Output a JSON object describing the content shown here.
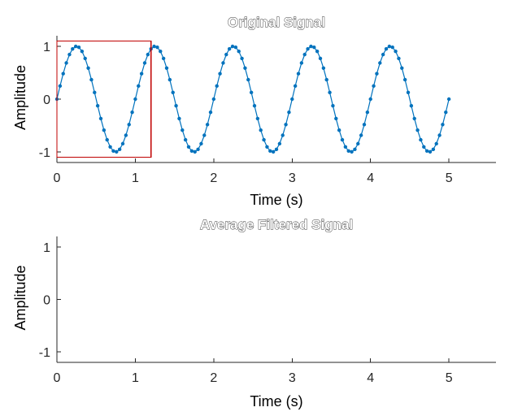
{
  "chart_data": [
    {
      "type": "line",
      "title": "Original Signal",
      "xlabel": "Time (s)",
      "ylabel": "Amplitude",
      "xlim": [
        0,
        5.6
      ],
      "ylim": [
        -1.2,
        1.2
      ],
      "xticks": [
        0,
        1,
        2,
        3,
        4,
        5
      ],
      "xtick_labels": [
        "0",
        "1",
        "2",
        "3",
        "4",
        "5"
      ],
      "yticks": [
        1,
        0,
        -1
      ],
      "ytick_labels": [
        "1",
        "0",
        "-1"
      ],
      "grid": false,
      "series": [
        {
          "color": "#0072BD",
          "marker": "dot",
          "function": "sin(2*pi*1*t)",
          "t_start": 0,
          "t_end": 5,
          "t_step": 0.04
        }
      ],
      "annotations": [
        {
          "type": "rectangle",
          "x": [
            0,
            1.2
          ],
          "y": [
            -1.1,
            1.1
          ],
          "color": "#C00000"
        }
      ]
    },
    {
      "type": "line",
      "title": "Average Filtered Signal",
      "xlabel": "Time (s)",
      "ylabel": "Amplitude",
      "xlim": [
        0,
        5.6
      ],
      "ylim": [
        -1.2,
        1.2
      ],
      "xticks": [
        0,
        1,
        2,
        3,
        4,
        5
      ],
      "xtick_labels": [
        "0",
        "1",
        "2",
        "3",
        "4",
        "5"
      ],
      "yticks": [
        1,
        0,
        -1
      ],
      "ytick_labels": [
        "1",
        "0",
        "-1"
      ],
      "grid": false,
      "series": []
    }
  ]
}
